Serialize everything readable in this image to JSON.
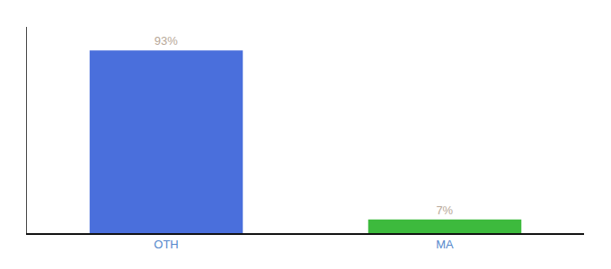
{
  "chart_data": {
    "type": "bar",
    "categories": [
      "OTH",
      "MA"
    ],
    "values": [
      93,
      7
    ],
    "value_labels": [
      "93%",
      "7%"
    ],
    "colors": [
      "#4a6fdc",
      "#3dba3d"
    ],
    "ylim": [
      0,
      105
    ],
    "data_labels": true,
    "tick_labels": "x",
    "grid": false
  }
}
